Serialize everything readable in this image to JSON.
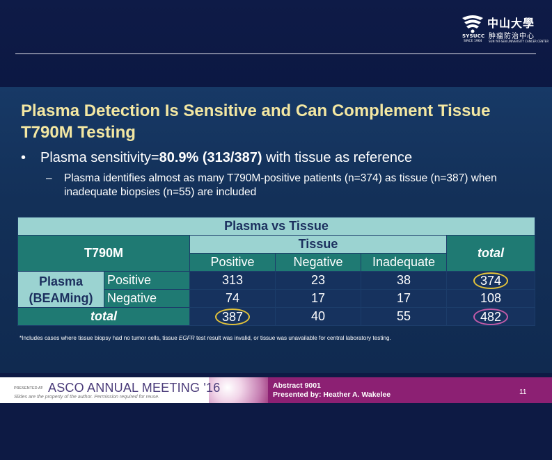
{
  "logo": {
    "abbr": "SYSUCC",
    "since": "SINCE 1964",
    "name_cn": "中山大學",
    "sub_cn": "肿瘤防治中心",
    "name_en": "SUN YAT-SEN UNIVERSITY CANCER CENTER"
  },
  "title": "Plasma Detection Is Sensitive and Can Complement Tissue T790M Testing",
  "bullet1": {
    "marker": "•",
    "prefix": "Plasma sensitivity=",
    "bold": "80.9% (313/387)",
    "suffix": " with tissue as reference"
  },
  "bullet2": {
    "marker": "–",
    "text": "Plasma identifies almost as many T790M-positive patients (n=374) as tissue (n=387) when inadequate biopsies (n=55) are included"
  },
  "table": {
    "caption": "Plasma vs Tissue",
    "corner": "T790M",
    "tissue_header": "Tissue",
    "total_header": "total",
    "columns": [
      "Positive",
      "Negative",
      "Inadequate"
    ],
    "row_group": "Plasma (BEAMing)",
    "row_group_line1": "Plasma",
    "row_group_line2": "(BEAMing)",
    "rows": [
      {
        "label": "Positive",
        "cells": [
          "313",
          "23",
          "38"
        ],
        "total": "374"
      },
      {
        "label": "Negative",
        "cells": [
          "74",
          "17",
          "17"
        ],
        "total": "108"
      }
    ],
    "total_row": {
      "label": "total",
      "cells": [
        "387",
        "40",
        "55"
      ],
      "total": "482"
    },
    "highlight_colors": {
      "yellow": "#e2c23a",
      "pink": "#c25ba8"
    }
  },
  "footnote": {
    "pre": "*Includes cases where tissue biopsy had no tumor cells, tissue ",
    "em": "EGFR",
    "post": " test result was invalid, or tissue was unavailable for central laboratory testing."
  },
  "footer": {
    "presented_at": "PRESENTED AT:",
    "meeting": "ASCO ANNUAL MEETING '16",
    "slides_note": "Slides are the property of the author. Permission required for reuse.",
    "abstract": "Abstract 9001",
    "presenter": "Presented by: Heather A. Wakelee",
    "page": "11"
  },
  "colors": {
    "title": "#f3e7a2",
    "table_light": "#9bd3d1",
    "table_dark": "#1f7a73",
    "footer_magenta": "#8c2073"
  }
}
